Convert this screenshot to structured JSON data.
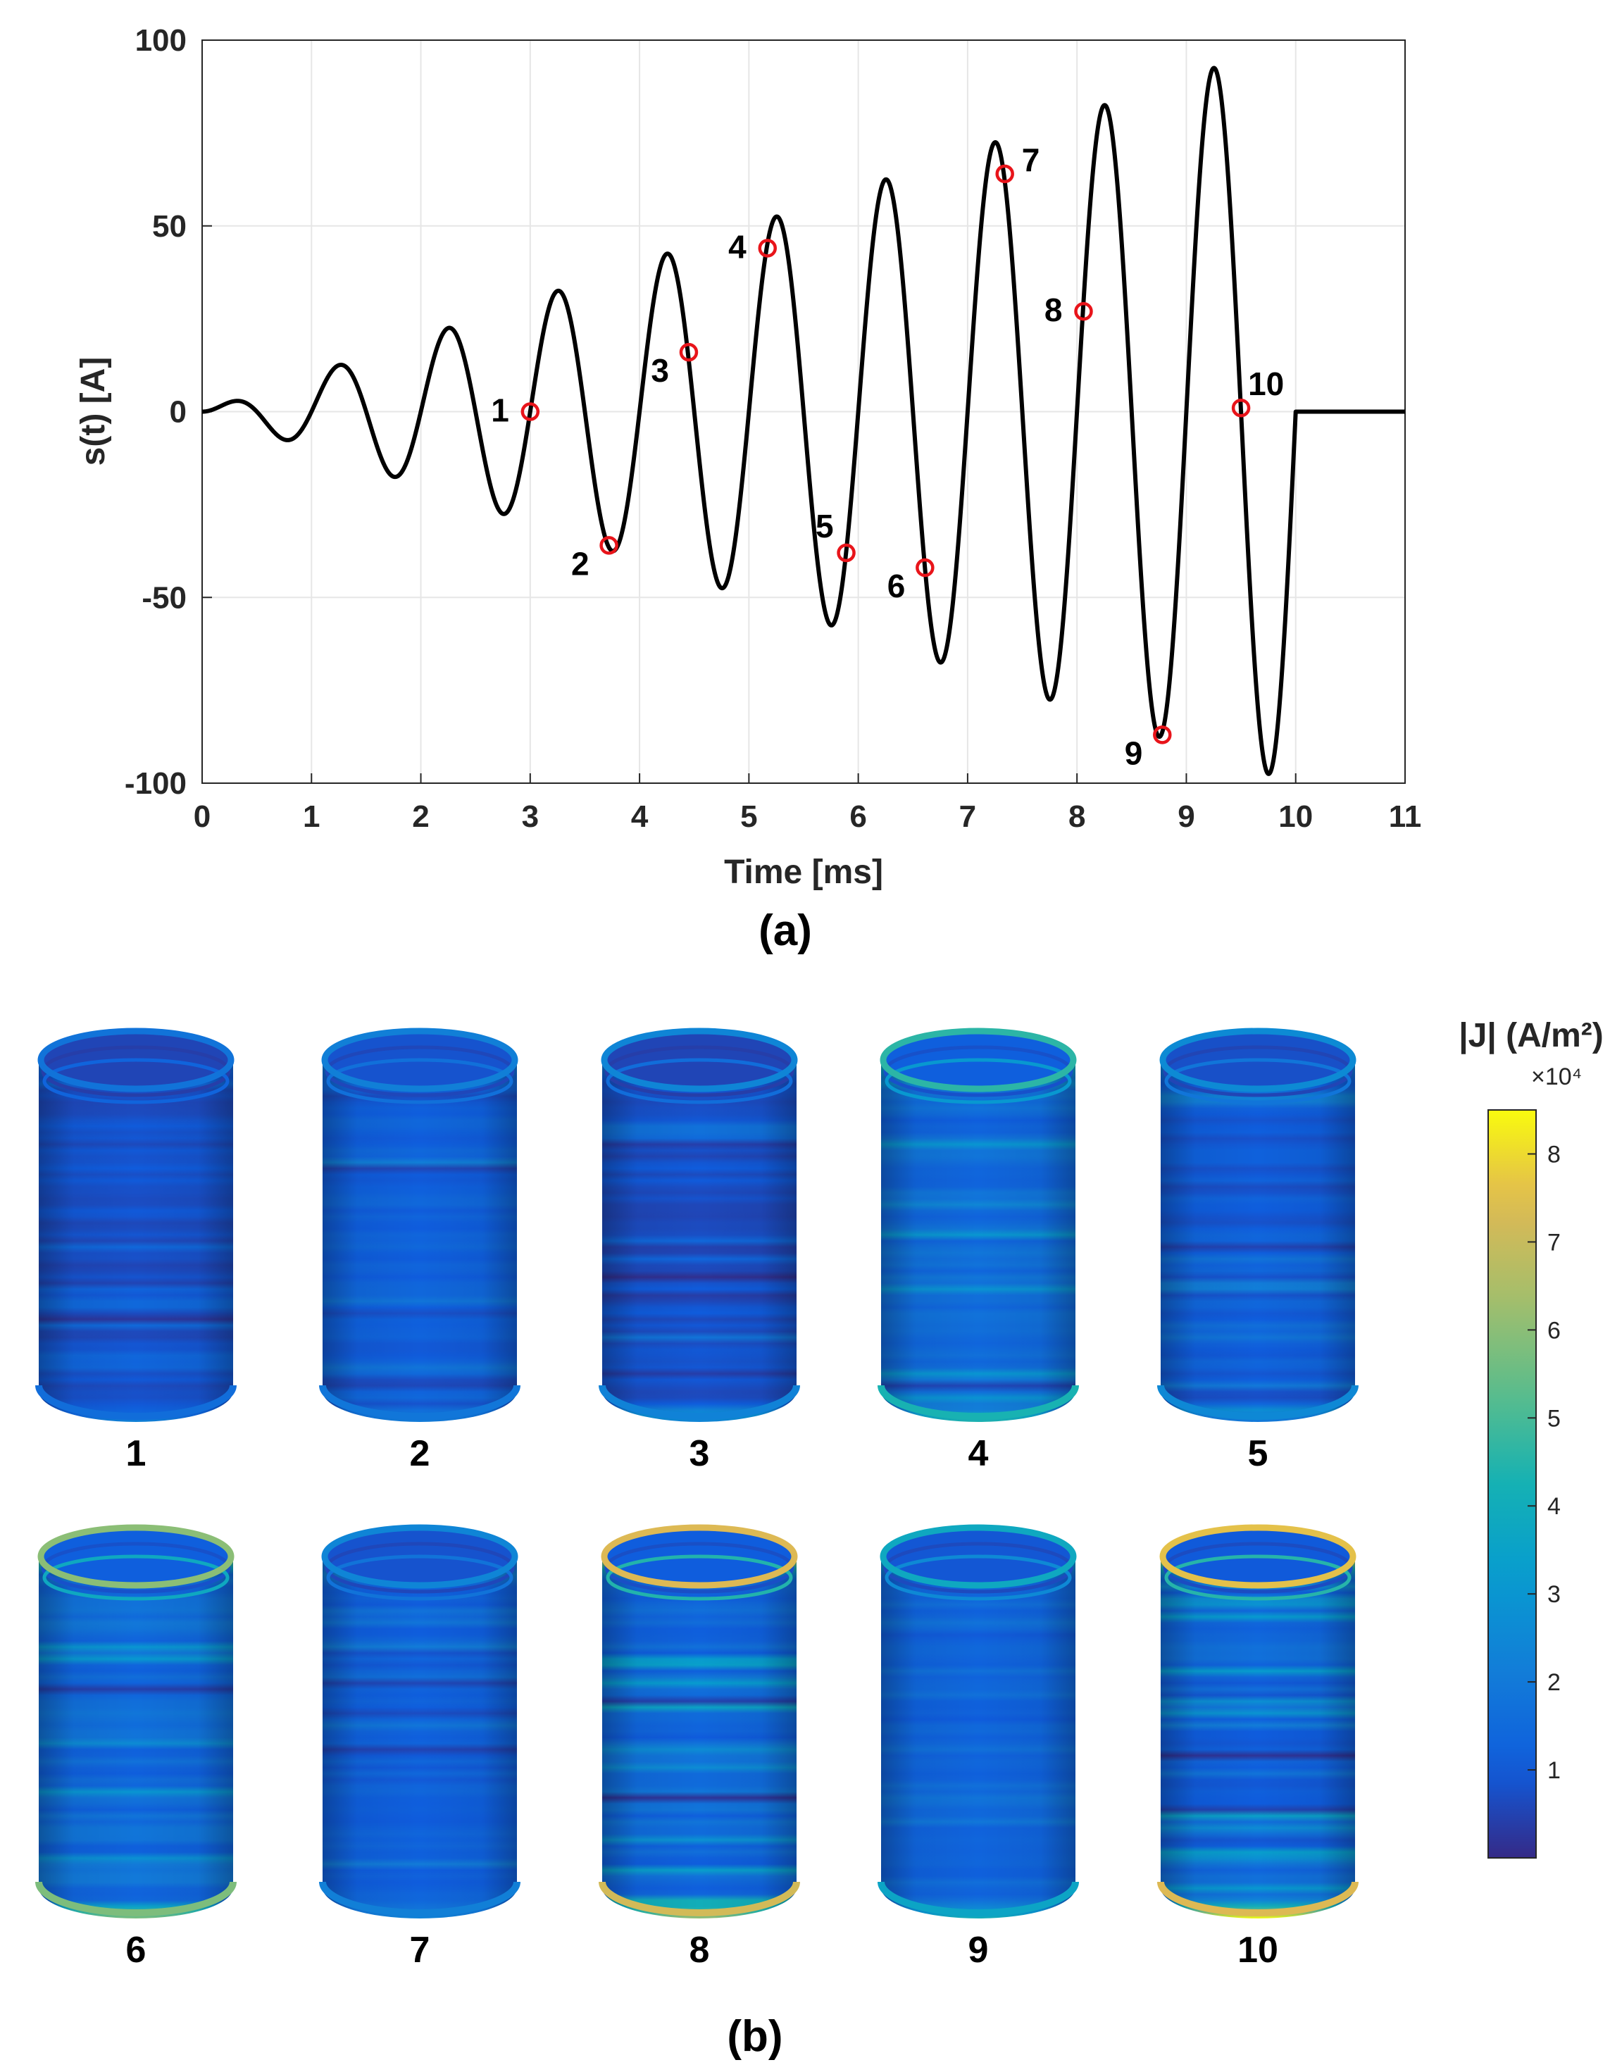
{
  "panel_a_label": "(a)",
  "panel_b_label": "(b)",
  "chart_data": {
    "type": "line",
    "title": "",
    "xlabel": "Time [ms]",
    "ylabel": "s(t) [A]",
    "xlim": [
      0,
      11
    ],
    "ylim": [
      -100,
      100
    ],
    "xticks": [
      "0",
      "1",
      "2",
      "3",
      "4",
      "5",
      "6",
      "7",
      "8",
      "9",
      "10",
      "11"
    ],
    "yticks": [
      "100",
      "50",
      "0",
      "-50",
      "-100"
    ],
    "grid": true,
    "series": [
      {
        "name": "s(t)",
        "color": "#000000",
        "signal": {
          "description": "linearly growing sinusoid, 1 kHz, zero after 10 ms",
          "frequency_khz": 1.0,
          "amplitude_slope_A_per_ms": 10.0,
          "end_ms": 10,
          "end_value": 0,
          "plot_end_ms": 11
        }
      }
    ],
    "markers": [
      {
        "label": "1",
        "x": 3.0,
        "y": 0,
        "label_side": "left"
      },
      {
        "label": "2",
        "x": 3.72,
        "y": -36,
        "label_side": "left-below"
      },
      {
        "label": "3",
        "x": 4.45,
        "y": 16,
        "label_side": "left-below"
      },
      {
        "label": "4",
        "x": 5.17,
        "y": 44,
        "label_side": "left"
      },
      {
        "label": "5",
        "x": 5.89,
        "y": -38,
        "label_side": "left-above"
      },
      {
        "label": "6",
        "x": 6.61,
        "y": -42,
        "label_side": "left-below"
      },
      {
        "label": "7",
        "x": 7.34,
        "y": 64,
        "label_side": "right"
      },
      {
        "label": "8",
        "x": 8.06,
        "y": 27,
        "label_side": "left"
      },
      {
        "label": "9",
        "x": 8.78,
        "y": -87,
        "label_side": "left-below"
      },
      {
        "label": "10",
        "x": 9.5,
        "y": 1,
        "label_side": "right-above"
      }
    ],
    "marker_color": "#e8141a"
  },
  "colorbar": {
    "title": "|J| (A/m²)",
    "exponent": "×10⁴",
    "range": [
      0,
      8.5
    ],
    "ticks": [
      "1",
      "2",
      "3",
      "4",
      "5",
      "6",
      "7",
      "8"
    ],
    "colormap": "parula"
  },
  "cylinders": [
    {
      "label": "1",
      "base_level": 0.8,
      "top_ring": 1.8,
      "bottom_ring": 1.6,
      "variation": 0.4
    },
    {
      "label": "2",
      "base_level": 1.2,
      "top_ring": 2.2,
      "bottom_ring": 1.9,
      "variation": 0.5
    },
    {
      "label": "3",
      "base_level": 0.8,
      "top_ring": 2.4,
      "bottom_ring": 2.3,
      "variation": 0.5
    },
    {
      "label": "4",
      "base_level": 1.6,
      "top_ring": 4.6,
      "bottom_ring": 4.3,
      "variation": 0.7
    },
    {
      "label": "5",
      "base_level": 1.1,
      "top_ring": 2.6,
      "bottom_ring": 2.5,
      "variation": 0.6
    },
    {
      "label": "6",
      "base_level": 1.6,
      "top_ring": 6.0,
      "bottom_ring": 5.8,
      "variation": 0.9
    },
    {
      "label": "7",
      "base_level": 1.2,
      "top_ring": 2.4,
      "bottom_ring": 2.2,
      "variation": 0.5
    },
    {
      "label": "8",
      "base_level": 1.5,
      "top_ring": 7.4,
      "bottom_ring": 7.2,
      "variation": 1.0
    },
    {
      "label": "9",
      "base_level": 1.3,
      "top_ring": 3.8,
      "bottom_ring": 3.6,
      "variation": 0.3
    },
    {
      "label": "10",
      "base_level": 1.4,
      "top_ring": 7.6,
      "bottom_ring": 7.4,
      "variation": 1.0
    }
  ]
}
